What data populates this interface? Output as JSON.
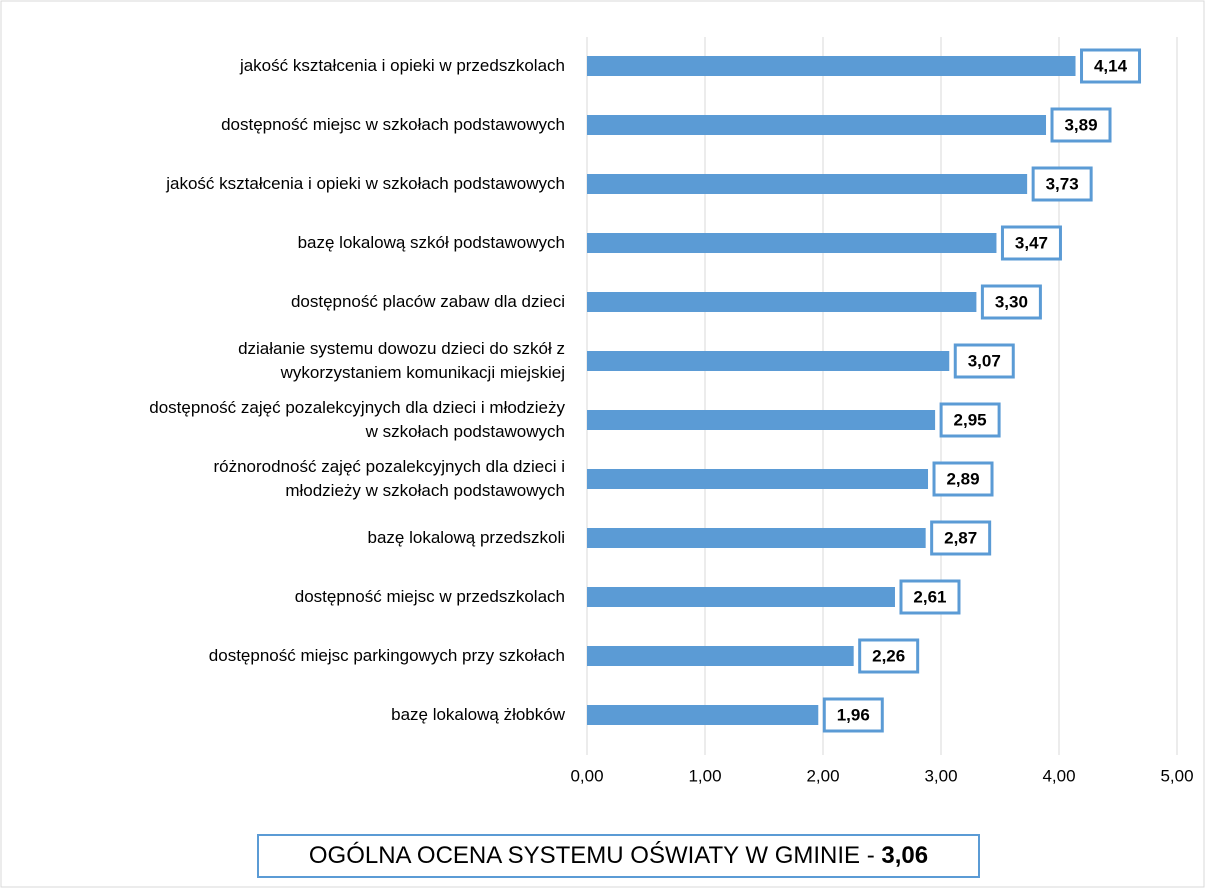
{
  "chart_data": {
    "type": "bar",
    "orientation": "horizontal",
    "categories": [
      "jakość kształcenia i opieki w przedszkolach",
      "dostępność miejsc w szkołach podstawowych",
      "jakość kształcenia i opieki w szkołach podstawowych",
      "bazę lokalową szkół podstawowych",
      "dostępność placów zabaw dla dzieci",
      "działanie systemu dowozu dzieci do szkół z\nwykorzystaniem komunikacji miejskiej",
      "dostępność zajęć pozalekcyjnych dla dzieci i młodzieży\nw szkołach podstawowych",
      "różnorodność zajęć pozalekcyjnych dla dzieci i\nmłodzieży w szkołach podstawowych",
      "bazę lokalową przedszkoli",
      "dostępność miejsc w przedszkolach",
      "dostępność miejsc parkingowych przy szkołach",
      "bazę lokalową żłobków"
    ],
    "values": [
      4.14,
      3.89,
      3.73,
      3.47,
      3.3,
      3.07,
      2.95,
      2.89,
      2.87,
      2.61,
      2.26,
      1.96
    ],
    "value_labels": [
      "4,14",
      "3,89",
      "3,73",
      "3,47",
      "3,30",
      "3,07",
      "2,95",
      "2,89",
      "2,87",
      "2,61",
      "2,26",
      "1,96"
    ],
    "color": "#5b9bd5",
    "xlim": [
      0,
      5
    ],
    "xticks": [
      {
        "value": 0,
        "label": "0,00"
      },
      {
        "value": 1,
        "label": "1,00"
      },
      {
        "value": 2,
        "label": "2,00"
      },
      {
        "value": 3,
        "label": "3,00"
      },
      {
        "value": 4,
        "label": "4,00"
      },
      {
        "value": 5,
        "label": "5,00"
      }
    ],
    "grid": true,
    "annotation": {
      "text": "OGÓLNA OCENA SYSTEMU OŚWIATY W GMINIE -",
      "value": 3.06,
      "value_label": "3,06"
    }
  }
}
